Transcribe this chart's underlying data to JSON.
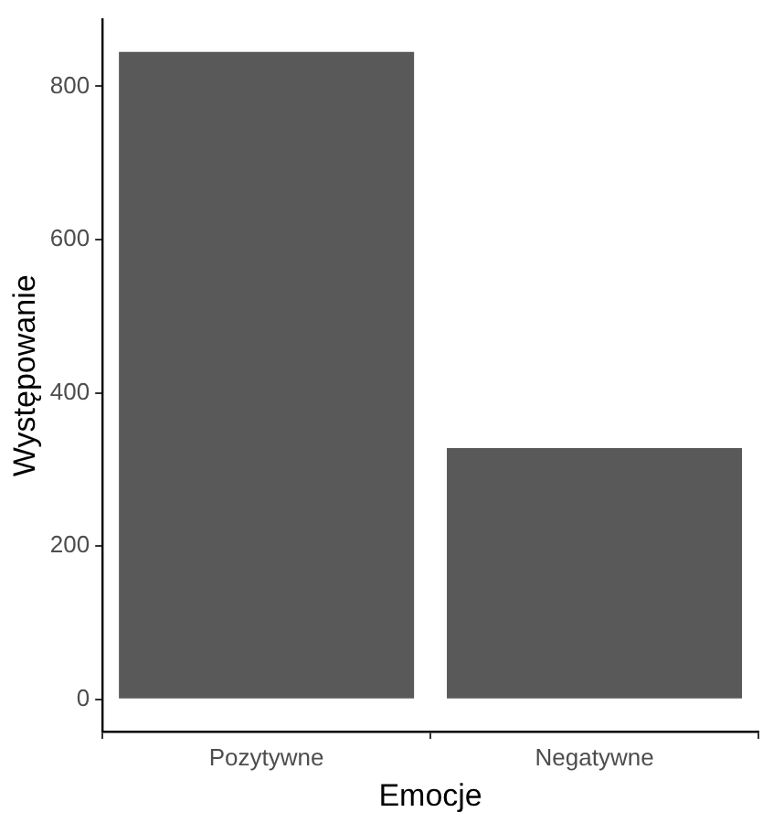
{
  "chart_data": {
    "type": "bar",
    "xlabel": "Emocje",
    "ylabel": "Występowanie",
    "categories": [
      "Pozytywne",
      "Negatywne"
    ],
    "values": [
      845,
      328
    ],
    "color": "#595959",
    "ylim": [
      -42,
      887
    ],
    "yticks": [
      0,
      200,
      400,
      600,
      800
    ],
    "grid": false,
    "legend": false
  }
}
